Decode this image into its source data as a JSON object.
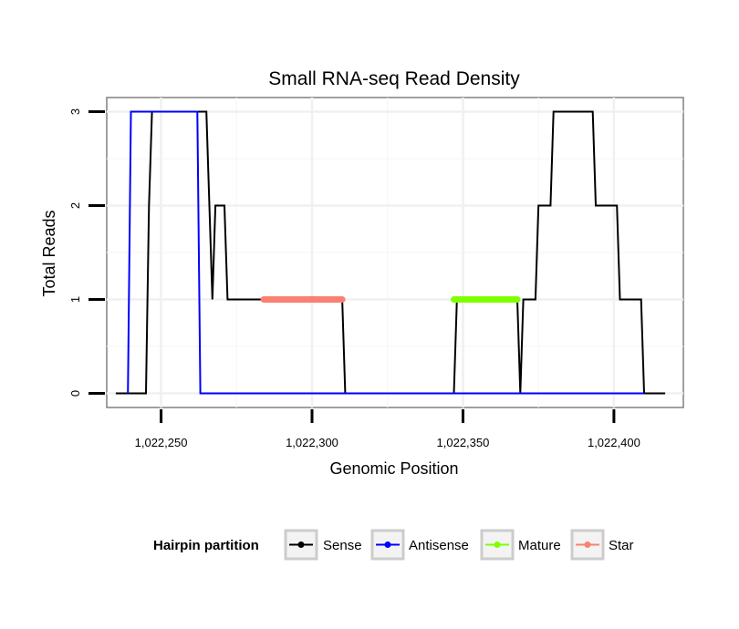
{
  "chart_data": {
    "type": "line",
    "title": "Small RNA-seq Read Density",
    "xlabel": "Genomic Position",
    "ylabel": "Total Reads",
    "xlim": [
      1022232,
      1022423
    ],
    "ylim": [
      -0.15,
      3.15
    ],
    "x_ticks": [
      1022250,
      1022300,
      1022350,
      1022400
    ],
    "x_tick_labels": [
      "1,022,250",
      "1,022,300",
      "1,022,350",
      "1,022,400"
    ],
    "y_ticks": [
      0,
      1,
      2,
      3
    ],
    "y_tick_labels": [
      "0",
      "1",
      "2",
      "3"
    ],
    "grid": true,
    "legend": {
      "title": "Hairpin partition",
      "position": "bottom",
      "entries": [
        "Sense",
        "Antisense",
        "Mature",
        "Star"
      ]
    },
    "series": [
      {
        "name": "Sense",
        "color": "#000000",
        "points": [
          [
            1022235,
            0
          ],
          [
            1022245,
            0
          ],
          [
            1022246,
            2
          ],
          [
            1022247,
            3
          ],
          [
            1022265,
            3
          ],
          [
            1022267,
            1
          ],
          [
            1022268,
            2
          ],
          [
            1022271,
            2
          ],
          [
            1022272,
            1
          ],
          [
            1022284,
            1
          ],
          [
            1022310,
            1
          ],
          [
            1022311,
            0
          ],
          [
            1022347,
            0
          ],
          [
            1022348,
            1
          ],
          [
            1022368,
            1
          ],
          [
            1022369,
            0
          ],
          [
            1022370,
            1
          ],
          [
            1022374,
            1
          ],
          [
            1022375,
            2
          ],
          [
            1022379,
            2
          ],
          [
            1022380,
            3
          ],
          [
            1022393,
            3
          ],
          [
            1022394,
            2
          ],
          [
            1022401,
            2
          ],
          [
            1022402,
            1
          ],
          [
            1022409,
            1
          ],
          [
            1022410,
            0
          ],
          [
            1022417,
            0
          ]
        ]
      },
      {
        "name": "Antisense",
        "color": "#0000ff",
        "points": [
          [
            1022239,
            0
          ],
          [
            1022240,
            3
          ],
          [
            1022262,
            3
          ],
          [
            1022263,
            0
          ],
          [
            1022410,
            0
          ]
        ]
      },
      {
        "name": "Mature",
        "color": "#7fff00",
        "points": [
          [
            1022347,
            1
          ],
          [
            1022368,
            1
          ]
        ]
      },
      {
        "name": "Star",
        "color": "#fa8072",
        "points": [
          [
            1022284,
            1
          ],
          [
            1022310,
            1
          ]
        ]
      }
    ]
  }
}
